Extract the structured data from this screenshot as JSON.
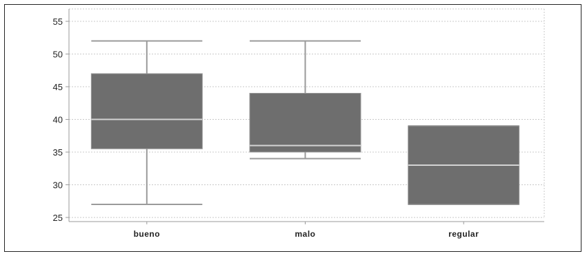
{
  "chart_data": {
    "type": "box",
    "title": "",
    "xlabel": "",
    "ylabel": "",
    "ylim": [
      25,
      56
    ],
    "yticks": [
      25,
      30,
      35,
      40,
      45,
      50,
      55
    ],
    "ytick_labels": [
      "25",
      "30",
      "35",
      "40",
      "45",
      "50",
      "55"
    ],
    "grid": true,
    "categories": [
      "bueno",
      "malo",
      "regular"
    ],
    "boxes": [
      {
        "category": "bueno",
        "whisker_low": 27,
        "q1": 35.5,
        "median": 40,
        "q3": 47,
        "whisker_high": 52
      },
      {
        "category": "malo",
        "whisker_low": 34,
        "q1": 35,
        "median": 36,
        "q3": 44,
        "whisker_high": 52
      },
      {
        "category": "regular",
        "whisker_low": 27,
        "q1": 27,
        "median": 33,
        "q3": 39,
        "whisker_high": 39
      }
    ],
    "colors": {
      "box_fill": "#6e6e6e",
      "median_line": "#d4d4d4",
      "whisker": "#9a9a9a",
      "grid": "#c8c8c8",
      "axis": "#9a9a9a"
    }
  }
}
